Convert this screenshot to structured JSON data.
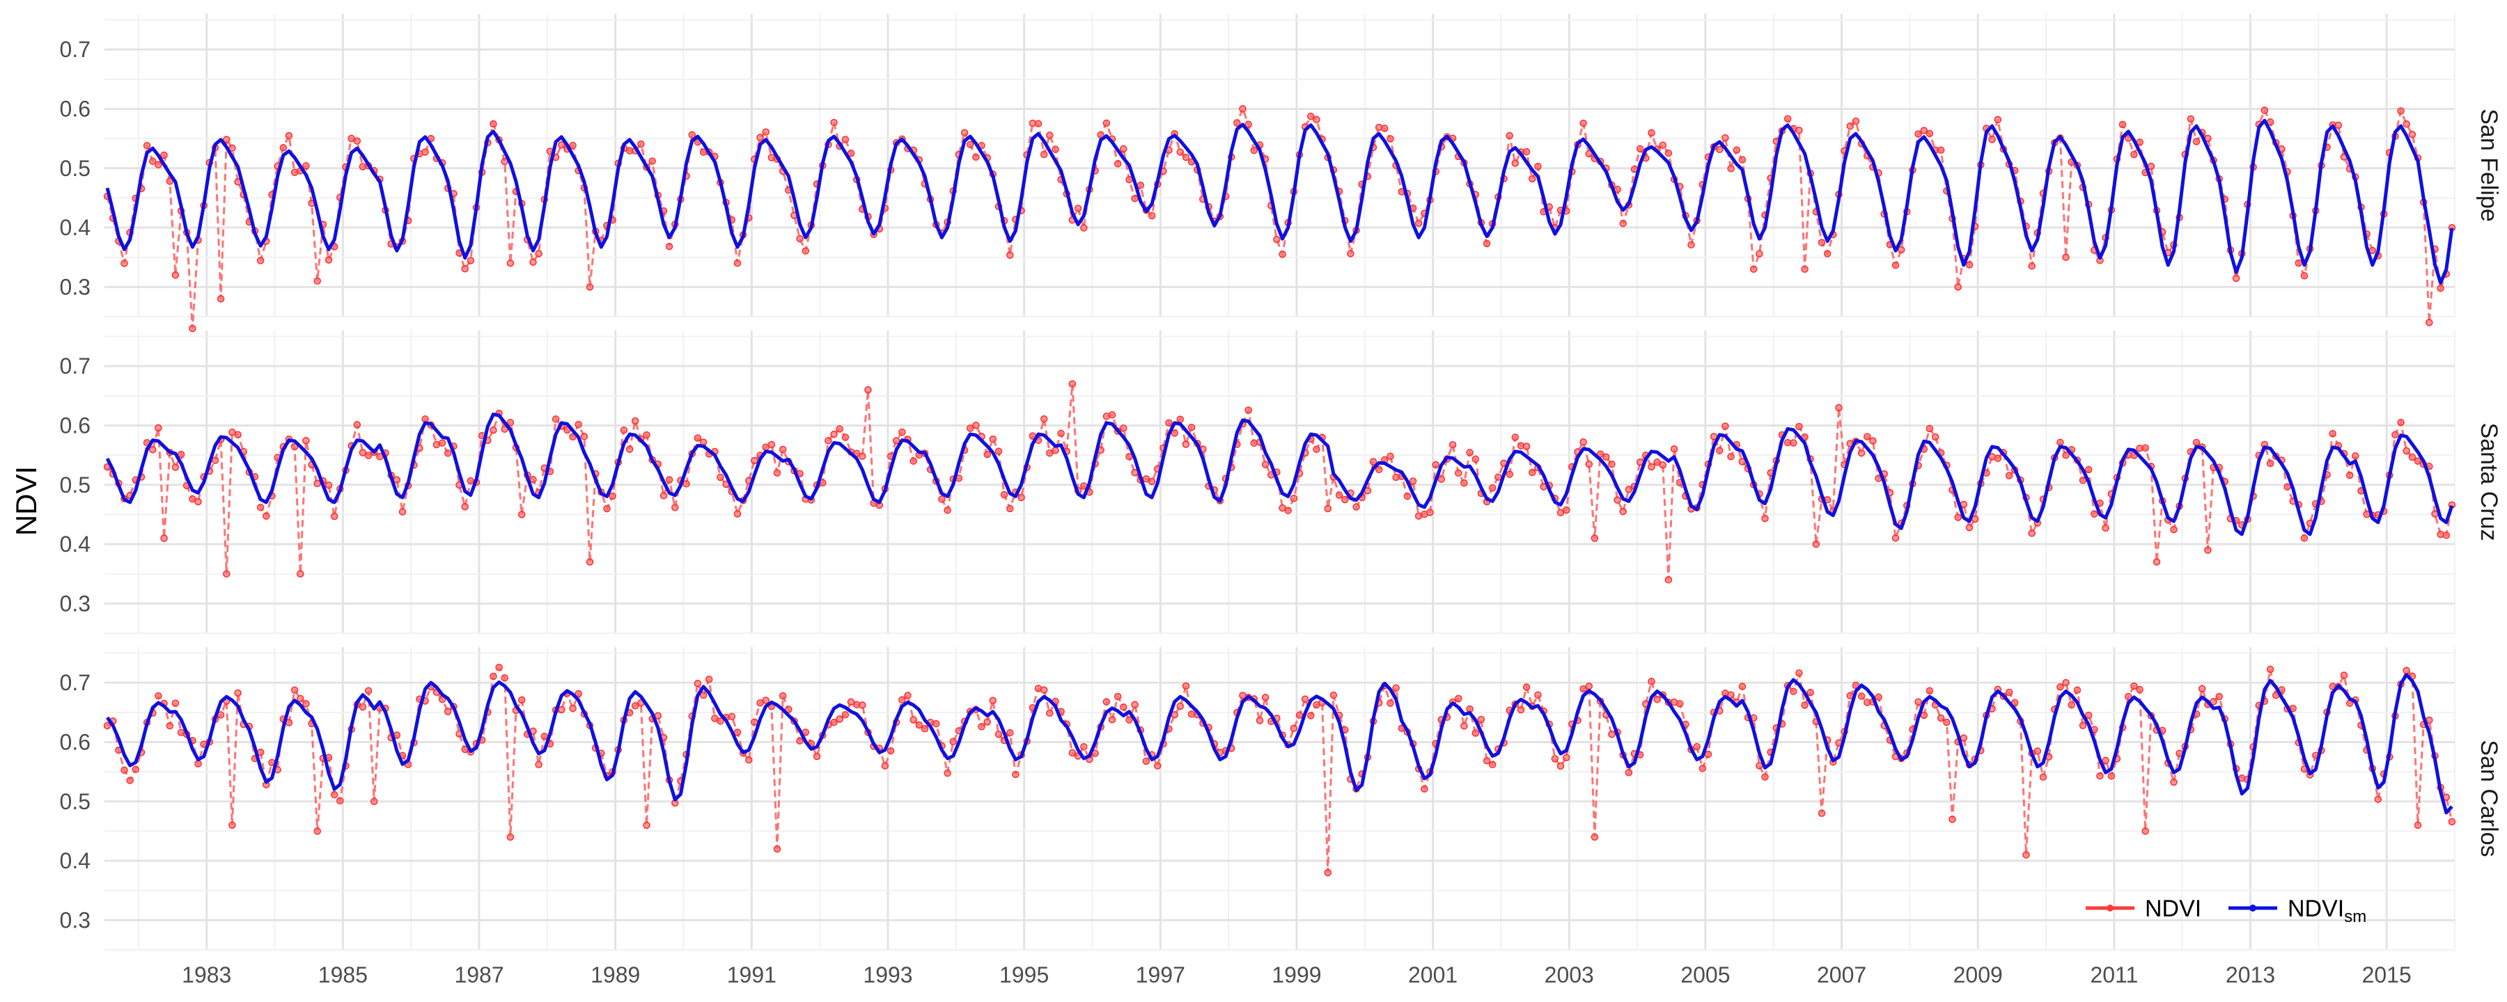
{
  "chart_data": {
    "type": "line",
    "ylabel": "NDVI",
    "xlabel": "",
    "x_start": "1981-07",
    "x_end": "2015-12",
    "ylim": [
      0.25,
      0.76
    ],
    "yticks": [
      0.3,
      0.4,
      0.5,
      0.6,
      0.7
    ],
    "xticks": [
      1983,
      1985,
      1987,
      1989,
      1991,
      1993,
      1995,
      1997,
      1999,
      2001,
      2003,
      2005,
      2007,
      2009,
      2011,
      2013,
      2015
    ],
    "xtick_labels": [
      "1983",
      "1985",
      "1987",
      "1989",
      "1991",
      "1993",
      "1995",
      "1997",
      "1999",
      "2001",
      "2003",
      "2005",
      "2007",
      "2009",
      "2011",
      "2013",
      "2015"
    ],
    "ytick_labels": [
      "0.3",
      "0.4",
      "0.5",
      "0.6",
      "0.7"
    ],
    "grid": true,
    "legend_position": "bottom-right",
    "legend": [
      {
        "label": "NDVI",
        "sub": "",
        "color": "#ff3b3b"
      },
      {
        "label": "NDVI",
        "sub": "sm",
        "color": "#1010e0"
      }
    ],
    "panels": [
      {
        "name": "San Felipe",
        "amplitude": [
          0.08,
          0.085,
          0.075,
          0.08,
          0.09,
          0.1,
          0.09,
          0.085,
          0.08,
          0.085,
          0.08,
          0.075,
          0.08,
          0.085,
          0.07,
          0.06,
          0.08,
          0.09,
          0.085,
          0.08,
          0.07,
          0.075,
          0.05,
          0.07,
          0.09,
          0.085,
          0.09,
          0.11,
          0.09,
          0.1,
          0.11,
          0.12,
          0.11,
          0.11,
          0.11
        ],
        "mean": [
          0.46,
          0.47,
          0.46,
          0.46,
          0.47,
          0.47,
          0.47,
          0.47,
          0.48,
          0.47,
          0.48,
          0.48,
          0.48,
          0.48,
          0.49,
          0.5,
          0.5,
          0.49,
          0.48,
          0.48,
          0.47,
          0.48,
          0.49,
          0.48,
          0.49,
          0.48,
          0.47,
          0.47,
          0.47,
          0.47,
          0.47,
          0.47,
          0.47,
          0.47,
          0.44
        ],
        "dips": [
          [
            1982.55,
            0.32
          ],
          [
            1982.8,
            0.23
          ],
          [
            1983.2,
            0.28
          ],
          [
            1984.6,
            0.31
          ],
          [
            1987.5,
            0.34
          ],
          [
            1988.6,
            0.3
          ],
          [
            1990.8,
            0.34
          ],
          [
            2005.7,
            0.33
          ],
          [
            2006.5,
            0.33
          ],
          [
            2008.7,
            0.3
          ],
          [
            2010.3,
            0.35
          ],
          [
            2015.6,
            0.24
          ]
        ],
        "phase": 0.1,
        "seed": 11
      },
      {
        "name": "Santa Cruz",
        "amplitude": [
          0.05,
          0.045,
          0.05,
          0.05,
          0.06,
          0.065,
          0.06,
          0.05,
          0.04,
          0.04,
          0.045,
          0.05,
          0.05,
          0.05,
          0.06,
          0.06,
          0.065,
          0.05,
          0.03,
          0.04,
          0.04,
          0.045,
          0.04,
          0.06,
          0.06,
          0.06,
          0.07,
          0.06,
          0.06,
          0.055,
          0.06,
          0.07,
          0.07,
          0.07,
          0.07
        ],
        "mean": [
          0.53,
          0.54,
          0.53,
          0.53,
          0.55,
          0.56,
          0.55,
          0.54,
          0.53,
          0.52,
          0.53,
          0.53,
          0.54,
          0.54,
          0.55,
          0.55,
          0.55,
          0.54,
          0.51,
          0.51,
          0.52,
          0.52,
          0.52,
          0.53,
          0.54,
          0.52,
          0.51,
          0.51,
          0.51,
          0.51,
          0.51,
          0.5,
          0.5,
          0.52,
          0.52
        ],
        "dips": [
          [
            1982.4,
            0.41
          ],
          [
            1983.3,
            0.35
          ],
          [
            1984.4,
            0.35
          ],
          [
            1987.6,
            0.45
          ],
          [
            1988.6,
            0.37
          ],
          [
            1992.7,
            0.66
          ],
          [
            1995.7,
            0.67
          ],
          [
            1999.5,
            0.46
          ],
          [
            2003.4,
            0.41
          ],
          [
            2004.5,
            0.34
          ],
          [
            2006.6,
            0.4
          ],
          [
            2007.0,
            0.63
          ],
          [
            2011.6,
            0.37
          ],
          [
            2012.4,
            0.39
          ]
        ],
        "phase": 0.05,
        "seed": 23
      },
      {
        "name": "San Carlos",
        "amplitude": [
          0.05,
          0.05,
          0.065,
          0.075,
          0.065,
          0.055,
          0.05,
          0.07,
          0.09,
          0.04,
          0.035,
          0.04,
          0.04,
          0.05,
          0.04,
          0.05,
          0.05,
          0.04,
          0.085,
          0.06,
          0.045,
          0.05,
          0.06,
          0.05,
          0.07,
          0.06,
          0.05,
          0.06,
          0.06,
          0.06,
          0.06,
          0.09,
          0.07,
          0.09,
          0.1
        ],
        "mean": [
          0.62,
          0.63,
          0.61,
          0.61,
          0.64,
          0.65,
          0.64,
          0.62,
          0.61,
          0.63,
          0.63,
          0.63,
          0.62,
          0.63,
          0.62,
          0.63,
          0.63,
          0.64,
          0.62,
          0.61,
          0.63,
          0.64,
          0.63,
          0.63,
          0.64,
          0.64,
          0.63,
          0.63,
          0.63,
          0.62,
          0.62,
          0.62,
          0.63,
          0.63,
          0.6
        ],
        "dips": [
          [
            1983.4,
            0.46
          ],
          [
            1984.6,
            0.45
          ],
          [
            1985.5,
            0.5
          ],
          [
            1987.5,
            0.44
          ],
          [
            1989.5,
            0.46
          ],
          [
            1991.4,
            0.42
          ],
          [
            1999.5,
            0.38
          ],
          [
            2003.4,
            0.44
          ],
          [
            2006.7,
            0.48
          ],
          [
            2008.6,
            0.47
          ],
          [
            2009.7,
            0.41
          ],
          [
            2011.5,
            0.45
          ],
          [
            2015.5,
            0.46
          ]
        ],
        "phase": 0.0,
        "seed": 37
      }
    ]
  }
}
